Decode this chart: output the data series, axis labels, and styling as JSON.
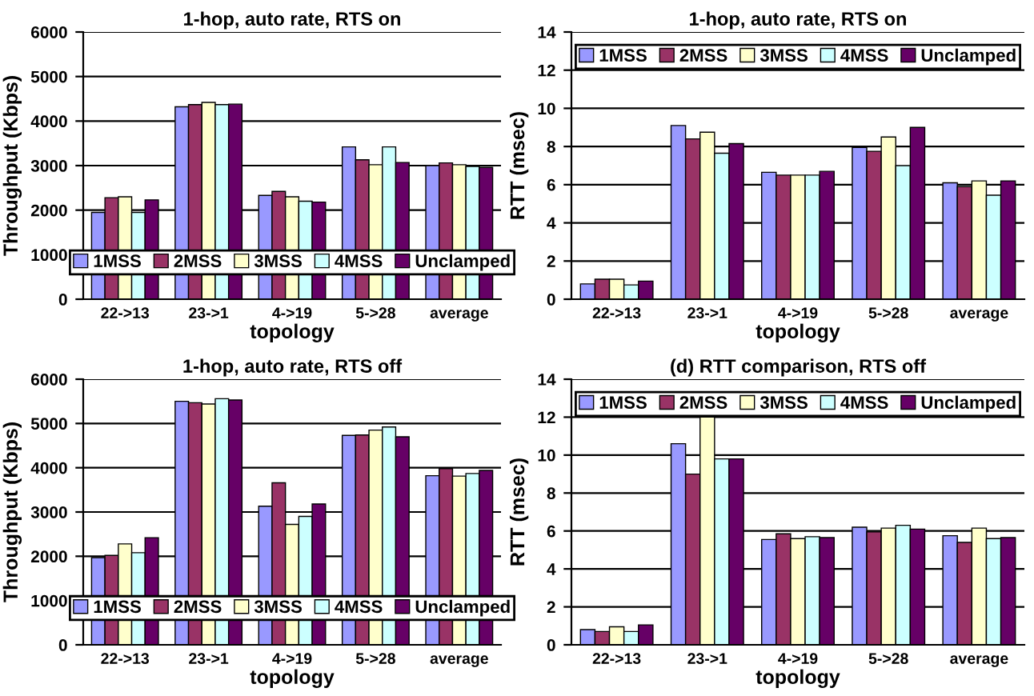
{
  "chart_data": [
    {
      "type": "bar",
      "title": "1-hop, auto rate, RTS on",
      "xlabel": "topology",
      "ylabel": "Throughput (Kbps)",
      "categories": [
        "22->13",
        "23->1",
        "4->19",
        "5->28",
        "average"
      ],
      "ylim": [
        0,
        6000
      ],
      "yticks": [
        0,
        1000,
        2000,
        3000,
        4000,
        5000,
        6000
      ],
      "grid": "y",
      "legend": "bottom",
      "series": [
        {
          "name": "1MSS",
          "color": "#9999ff",
          "values": [
            1950,
            4320,
            2330,
            3420,
            3000
          ]
        },
        {
          "name": "2MSS",
          "color": "#993366",
          "values": [
            2280,
            4370,
            2420,
            3130,
            3060
          ]
        },
        {
          "name": "3MSS",
          "color": "#ffffcc",
          "values": [
            2300,
            4420,
            2300,
            3020,
            3020
          ]
        },
        {
          "name": "4MSS",
          "color": "#ccffff",
          "values": [
            1950,
            4370,
            2200,
            3420,
            2980
          ]
        },
        {
          "name": "Unclamped",
          "color": "#660066",
          "values": [
            2230,
            4380,
            2180,
            3070,
            2960
          ]
        }
      ]
    },
    {
      "type": "bar",
      "title": "1-hop, auto rate, RTS on",
      "xlabel": "topology",
      "ylabel": "RTT (msec)",
      "categories": [
        "22->13",
        "23->1",
        "4->19",
        "5->28",
        "average"
      ],
      "ylim": [
        0,
        14
      ],
      "yticks": [
        0,
        2,
        4,
        6,
        8,
        10,
        12,
        14
      ],
      "grid": "y",
      "legend": "top",
      "series": [
        {
          "name": "1MSS",
          "color": "#9999ff",
          "values": [
            0.8,
            9.1,
            6.65,
            7.95,
            6.1
          ]
        },
        {
          "name": "2MSS",
          "color": "#993366",
          "values": [
            1.05,
            8.4,
            6.5,
            7.75,
            5.9
          ]
        },
        {
          "name": "3MSS",
          "color": "#ffffcc",
          "values": [
            1.05,
            8.75,
            6.5,
            8.5,
            6.2
          ]
        },
        {
          "name": "4MSS",
          "color": "#ccffff",
          "values": [
            0.75,
            7.65,
            6.5,
            7.0,
            5.45
          ]
        },
        {
          "name": "Unclamped",
          "color": "#660066",
          "values": [
            0.95,
            8.15,
            6.7,
            9.0,
            6.2
          ]
        }
      ]
    },
    {
      "type": "bar",
      "title": "1-hop, auto rate, RTS off",
      "xlabel": "topology",
      "ylabel": "Throughput (Kbps)",
      "categories": [
        "22->13",
        "23->1",
        "4->19",
        "5->28",
        "average"
      ],
      "ylim": [
        0,
        6000
      ],
      "yticks": [
        0,
        1000,
        2000,
        3000,
        4000,
        5000,
        6000
      ],
      "grid": "y",
      "legend": "bottom",
      "series": [
        {
          "name": "1MSS",
          "color": "#9999ff",
          "values": [
            1970,
            5500,
            3130,
            4730,
            3820
          ]
        },
        {
          "name": "2MSS",
          "color": "#993366",
          "values": [
            2020,
            5470,
            3660,
            4740,
            3980
          ]
        },
        {
          "name": "3MSS",
          "color": "#ffffcc",
          "values": [
            2280,
            5440,
            2720,
            4850,
            3810
          ]
        },
        {
          "name": "4MSS",
          "color": "#ccffff",
          "values": [
            2080,
            5560,
            2900,
            4920,
            3870
          ]
        },
        {
          "name": "Unclamped",
          "color": "#660066",
          "values": [
            2420,
            5530,
            3180,
            4700,
            3940
          ]
        }
      ]
    },
    {
      "type": "bar",
      "title": "(d) RTT comparison, RTS off",
      "xlabel": "topology",
      "ylabel": "RTT (msec)",
      "categories": [
        "22->13",
        "23->1",
        "4->19",
        "5->28",
        "average"
      ],
      "ylim": [
        0,
        14
      ],
      "yticks": [
        0,
        2,
        4,
        6,
        8,
        10,
        12,
        14
      ],
      "grid": "y",
      "legend": "top",
      "series": [
        {
          "name": "1MSS",
          "color": "#9999ff",
          "values": [
            0.8,
            10.6,
            5.55,
            6.2,
            5.75
          ]
        },
        {
          "name": "2MSS",
          "color": "#993366",
          "values": [
            0.7,
            9.0,
            5.85,
            5.95,
            5.4
          ]
        },
        {
          "name": "3MSS",
          "color": "#ffffcc",
          "values": [
            0.95,
            12.0,
            5.6,
            6.15,
            6.15
          ]
        },
        {
          "name": "4MSS",
          "color": "#ccffff",
          "values": [
            0.7,
            9.8,
            5.7,
            6.3,
            5.6
          ]
        },
        {
          "name": "Unclamped",
          "color": "#660066",
          "values": [
            1.05,
            9.8,
            5.65,
            6.1,
            5.65
          ]
        }
      ]
    }
  ]
}
